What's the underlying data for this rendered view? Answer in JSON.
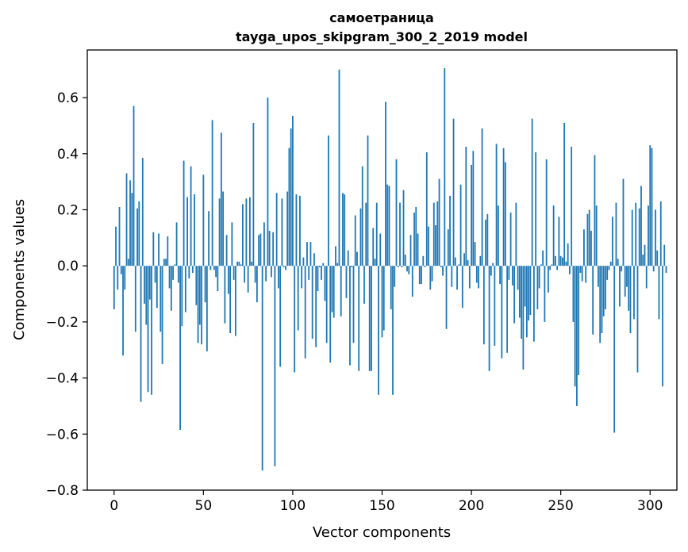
{
  "chart_data": {
    "type": "bar",
    "title": "самоетраница",
    "subtitle": "tayga_upos_skipgram_300_2_2019 model",
    "xlabel": "Vector components",
    "ylabel": "Components values",
    "xlim": [
      -15,
      315
    ],
    "ylim": [
      -0.8,
      0.77
    ],
    "x_ticks": [
      0,
      50,
      100,
      150,
      200,
      250,
      300
    ],
    "y_ticks": [
      -0.8,
      -0.6,
      -0.4,
      -0.2,
      0.0,
      0.2,
      0.4,
      0.6
    ],
    "y_tick_labels": [
      "−0.8",
      "−0.6",
      "−0.4",
      "−0.2",
      "0.0",
      "0.2",
      "0.4",
      "0.6"
    ],
    "grid": false,
    "bar_color": "#1f77b4",
    "x_start": 0,
    "values": [
      -0.155,
      0.14,
      -0.085,
      0.21,
      -0.03,
      -0.32,
      -0.085,
      0.33,
      0.025,
      0.305,
      0.26,
      0.57,
      -0.235,
      0.205,
      0.23,
      -0.485,
      0.385,
      -0.135,
      -0.21,
      -0.45,
      -0.12,
      -0.46,
      0.12,
      -0.06,
      -0.15,
      0.115,
      -0.235,
      -0.35,
      0.025,
      0.025,
      0.105,
      -0.08,
      -0.16,
      -0.05,
      0.005,
      0.155,
      -0.06,
      -0.585,
      -0.215,
      0.375,
      -0.165,
      0.245,
      -0.045,
      0.355,
      -0.025,
      0.255,
      -0.14,
      -0.275,
      -0.21,
      -0.28,
      0.325,
      -0.13,
      -0.305,
      0.195,
      -0.015,
      0.52,
      -0.015,
      -0.04,
      -0.09,
      0.24,
      0.475,
      0.265,
      -0.205,
      0.11,
      -0.1,
      -0.24,
      0.155,
      -0.05,
      -0.25,
      0.015,
      0.015,
      0.005,
      0.22,
      -0.06,
      0.24,
      -0.095,
      0.245,
      0.015,
      0.51,
      -0.06,
      -0.13,
      0.11,
      0.115,
      -0.73,
      0.155,
      -0.055,
      0.6,
      0.125,
      -0.04,
      0.12,
      -0.715,
      0.26,
      -0.08,
      -0.36,
      0.24,
      -0.005,
      -0.015,
      0.265,
      0.42,
      0.49,
      0.535,
      -0.38,
      0.255,
      -0.23,
      0.25,
      -0.08,
      0.03,
      -0.33,
      0.085,
      -0.05,
      0.085,
      -0.26,
      0.045,
      -0.29,
      -0.09,
      -0.005,
      -0.05,
      0.01,
      -0.125,
      -0.275,
      0.465,
      -0.345,
      -0.165,
      -0.185,
      0.07,
      0.01,
      0.7,
      -0.18,
      0.26,
      0.255,
      -0.115,
      0.055,
      -0.355,
      -0.005,
      -0.275,
      0.18,
      0.05,
      -0.375,
      0.205,
      0.355,
      -0.135,
      0.225,
      0.465,
      -0.375,
      -0.375,
      0.135,
      0.025,
      0.225,
      -0.46,
      0.115,
      -0.255,
      -0.23,
      0.585,
      0.29,
      0.285,
      -0.155,
      -0.46,
      -0.075,
      0.38,
      -0.005,
      0.225,
      -0.005,
      0.27,
      0.04,
      -0.02,
      -0.03,
      0.11,
      -0.11,
      0.19,
      0.21,
      0.115,
      -0.065,
      -0.065,
      0.035,
      -0.005,
      0.405,
      0.14,
      -0.085,
      -0.055,
      0.225,
      0.145,
      0.23,
      0.31,
      -0.005,
      -0.035,
      0.705,
      -0.225,
      0.13,
      0.25,
      -0.075,
      0.525,
      0.03,
      -0.085,
      0.005,
      0.29,
      -0.15,
      0.045,
      0.425,
      0.02,
      -0.08,
      0.36,
      0.41,
      0.085,
      -0.06,
      -0.08,
      0.035,
      0.49,
      -0.28,
      0.165,
      0.185,
      -0.375,
      -0.035,
      0.01,
      -0.285,
      0.435,
      0.215,
      -0.065,
      -0.33,
      0.42,
      0.37,
      -0.31,
      -0.05,
      0.19,
      -0.07,
      -0.205,
      0.225,
      -0.085,
      -0.185,
      -0.26,
      -0.37,
      -0.145,
      -0.255,
      -0.195,
      -0.175,
      0.525,
      -0.27,
      0.405,
      -0.155,
      -0.08,
      0.005,
      0.055,
      -0.2,
      0.38,
      -0.095,
      -0.015,
      0.005,
      0.215,
      0.035,
      -0.015,
      0.175,
      0.035,
      0.03,
      0.51,
      0.015,
      0.08,
      -0.03,
      0.425,
      -0.2,
      -0.43,
      -0.5,
      -0.39,
      -0.025,
      -0.055,
      0.13,
      -0.06,
      0.185,
      0.2,
      0.125,
      -0.245,
      0.395,
      0.215,
      -0.075,
      -0.275,
      -0.24,
      -0.18,
      -0.155,
      -0.05,
      -0.015,
      0.015,
      0.175,
      -0.595,
      0.225,
      0.025,
      -0.145,
      -0.02,
      0.31,
      -0.11,
      -0.075,
      -0.16,
      -0.24,
      0.2,
      -0.19,
      0.225,
      -0.38,
      0.205,
      0.285,
      0.04,
      0.075,
      -0.08,
      0.215,
      0.43,
      0.42,
      -0.02,
      0.2,
      0.055,
      -0.19,
      0.23,
      -0.43,
      0.075,
      -0.025
    ]
  }
}
